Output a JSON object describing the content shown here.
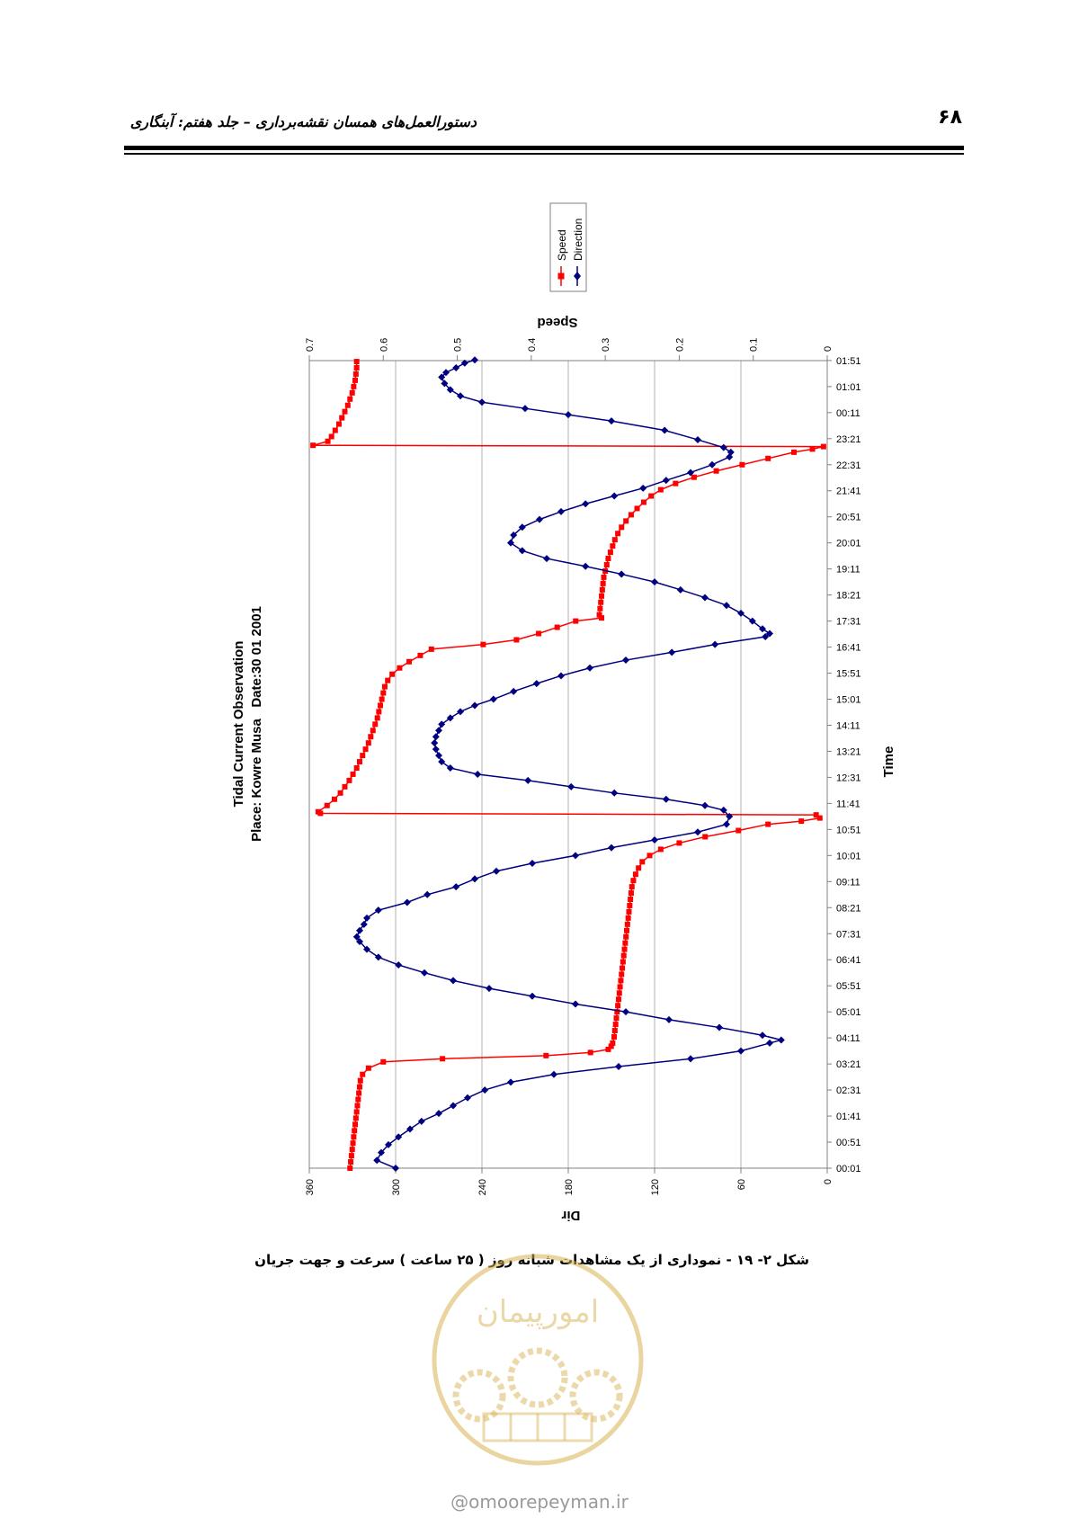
{
  "page": {
    "header_title": "دستورالعمل‌های همسان نقشه‌برداری – جلد هفتم: آبنگاری",
    "page_number": "۶۸",
    "caption": "شکل ۲- ۱۹ - نموداری از یک مشاهدات شبانه روز ( ۲۵ ساعت ) سرعت و جهت جریان",
    "watermark_text": "امورپیمان",
    "watermark_url": "@omoorepeyman.ir"
  },
  "colors": {
    "speed": "#ff0000",
    "direction": "#000080",
    "grid": "#b0b0b0",
    "watermark": "#d8b050"
  },
  "chart_data": {
    "type": "line",
    "orientation": "rotated-90",
    "title": "Tidal Current Observation",
    "subtitle": "Place: Kowre Musa   Date:30 01 2001",
    "xlabel": "Time",
    "ylabel_left": "Dir",
    "ylabel_right": "Speed",
    "x_tick_labels": [
      "00:01",
      "00:51",
      "01:41",
      "02:31",
      "03:21",
      "04:11",
      "05:01",
      "05:51",
      "06:41",
      "07:31",
      "08:21",
      "09:11",
      "10:01",
      "10:51",
      "11:41",
      "12:31",
      "13:21",
      "14:11",
      "15:01",
      "15:51",
      "16:41",
      "17:31",
      "18:21",
      "19:11",
      "20:01",
      "20:51",
      "21:41",
      "22:31",
      "23:21",
      "00:11",
      "01:01",
      "01:51"
    ],
    "x_range_hours": [
      0,
      25.83
    ],
    "dir_axis": {
      "range": [
        0,
        360
      ],
      "ticks": [
        0,
        60,
        120,
        180,
        240,
        300,
        360
      ]
    },
    "speed_axis": {
      "range": [
        0,
        0.7
      ],
      "ticks": [
        "0",
        "0.1",
        "0.2",
        "0.3",
        "0.4",
        "0.5",
        "0.6",
        "0.7"
      ]
    },
    "grid": true,
    "legend": {
      "position": "top",
      "entries": [
        "Speed",
        "Direction"
      ]
    },
    "series": [
      {
        "name": "Speed",
        "axis": "speed",
        "marker": "square",
        "points": [
          [
            0.0,
            0.645
          ],
          [
            0.2,
            0.644
          ],
          [
            0.4,
            0.643
          ],
          [
            0.6,
            0.642
          ],
          [
            0.8,
            0.641
          ],
          [
            1.0,
            0.64
          ],
          [
            1.2,
            0.639
          ],
          [
            1.4,
            0.638
          ],
          [
            1.6,
            0.637
          ],
          [
            1.8,
            0.636
          ],
          [
            2.0,
            0.635
          ],
          [
            2.2,
            0.634
          ],
          [
            2.4,
            0.633
          ],
          [
            2.6,
            0.632
          ],
          [
            2.8,
            0.631
          ],
          [
            3.0,
            0.628
          ],
          [
            3.2,
            0.62
          ],
          [
            3.4,
            0.6
          ],
          [
            3.5,
            0.52
          ],
          [
            3.6,
            0.38
          ],
          [
            3.7,
            0.32
          ],
          [
            3.8,
            0.296
          ],
          [
            3.9,
            0.292
          ],
          [
            4.0,
            0.29
          ],
          [
            4.2,
            0.288
          ],
          [
            4.4,
            0.287
          ],
          [
            4.6,
            0.286
          ],
          [
            4.8,
            0.285
          ],
          [
            5.0,
            0.284
          ],
          [
            5.2,
            0.283
          ],
          [
            5.4,
            0.282
          ],
          [
            5.6,
            0.281
          ],
          [
            5.8,
            0.28
          ],
          [
            6.0,
            0.279
          ],
          [
            6.2,
            0.278
          ],
          [
            6.4,
            0.277
          ],
          [
            6.6,
            0.276
          ],
          [
            6.8,
            0.275
          ],
          [
            7.0,
            0.274
          ],
          [
            7.2,
            0.273
          ],
          [
            7.4,
            0.272
          ],
          [
            7.6,
            0.271
          ],
          [
            7.8,
            0.27
          ],
          [
            8.0,
            0.269
          ],
          [
            8.2,
            0.268
          ],
          [
            8.4,
            0.267
          ],
          [
            8.6,
            0.266
          ],
          [
            8.8,
            0.265
          ],
          [
            9.0,
            0.264
          ],
          [
            9.2,
            0.262
          ],
          [
            9.4,
            0.259
          ],
          [
            9.6,
            0.255
          ],
          [
            9.8,
            0.25
          ],
          [
            10.0,
            0.24
          ],
          [
            10.2,
            0.225
          ],
          [
            10.4,
            0.2
          ],
          [
            10.6,
            0.165
          ],
          [
            10.8,
            0.12
          ],
          [
            11.0,
            0.08
          ],
          [
            11.1,
            0.035
          ],
          [
            11.2,
            0.01
          ],
          [
            11.3,
            0.015
          ],
          [
            11.35,
            0.685
          ],
          [
            11.4,
            0.688
          ],
          [
            11.6,
            0.676
          ],
          [
            11.8,
            0.666
          ],
          [
            12.0,
            0.658
          ],
          [
            12.2,
            0.652
          ],
          [
            12.4,
            0.646
          ],
          [
            12.6,
            0.641
          ],
          [
            12.8,
            0.636
          ],
          [
            13.0,
            0.632
          ],
          [
            13.2,
            0.628
          ],
          [
            13.4,
            0.624
          ],
          [
            13.6,
            0.62
          ],
          [
            13.8,
            0.617
          ],
          [
            14.0,
            0.614
          ],
          [
            14.2,
            0.611
          ],
          [
            14.4,
            0.608
          ],
          [
            14.6,
            0.606
          ],
          [
            14.8,
            0.604
          ],
          [
            15.0,
            0.602
          ],
          [
            15.2,
            0.6
          ],
          [
            15.4,
            0.598
          ],
          [
            15.6,
            0.594
          ],
          [
            15.8,
            0.588
          ],
          [
            16.0,
            0.578
          ],
          [
            16.2,
            0.565
          ],
          [
            16.4,
            0.55
          ],
          [
            16.6,
            0.535
          ],
          [
            16.75,
            0.465
          ],
          [
            16.9,
            0.42
          ],
          [
            17.1,
            0.39
          ],
          [
            17.3,
            0.365
          ],
          [
            17.5,
            0.34
          ],
          [
            17.6,
            0.305
          ],
          [
            17.7,
            0.308
          ],
          [
            17.9,
            0.307
          ],
          [
            18.1,
            0.306
          ],
          [
            18.3,
            0.305
          ],
          [
            18.5,
            0.304
          ],
          [
            18.7,
            0.303
          ],
          [
            18.9,
            0.302
          ],
          [
            19.1,
            0.3
          ],
          [
            19.3,
            0.298
          ],
          [
            19.5,
            0.296
          ],
          [
            19.7,
            0.293
          ],
          [
            19.9,
            0.29
          ],
          [
            20.1,
            0.287
          ],
          [
            20.3,
            0.283
          ],
          [
            20.5,
            0.278
          ],
          [
            20.7,
            0.272
          ],
          [
            20.9,
            0.265
          ],
          [
            21.1,
            0.257
          ],
          [
            21.3,
            0.248
          ],
          [
            21.5,
            0.238
          ],
          [
            21.7,
            0.225
          ],
          [
            21.9,
            0.205
          ],
          [
            22.1,
            0.18
          ],
          [
            22.3,
            0.15
          ],
          [
            22.5,
            0.115
          ],
          [
            22.7,
            0.08
          ],
          [
            22.9,
            0.045
          ],
          [
            23.0,
            0.02
          ],
          [
            23.08,
            0.005
          ],
          [
            23.12,
            0.695
          ],
          [
            23.25,
            0.675
          ],
          [
            23.4,
            0.67
          ],
          [
            23.6,
            0.665
          ],
          [
            23.8,
            0.66
          ],
          [
            24.0,
            0.656
          ],
          [
            24.2,
            0.652
          ],
          [
            24.4,
            0.648
          ],
          [
            24.6,
            0.645
          ],
          [
            24.8,
            0.642
          ],
          [
            25.0,
            0.64
          ],
          [
            25.2,
            0.638
          ],
          [
            25.4,
            0.637
          ],
          [
            25.6,
            0.636
          ],
          [
            25.8,
            0.636
          ]
        ]
      },
      {
        "name": "Direction",
        "axis": "dir",
        "marker": "diamond",
        "points": [
          [
            0.0,
            300
          ],
          [
            0.25,
            313
          ],
          [
            0.5,
            310
          ],
          [
            0.75,
            305
          ],
          [
            1.0,
            298
          ],
          [
            1.25,
            290
          ],
          [
            1.5,
            282
          ],
          [
            1.75,
            270
          ],
          [
            2.0,
            260
          ],
          [
            2.25,
            250
          ],
          [
            2.5,
            238
          ],
          [
            2.75,
            220
          ],
          [
            3.0,
            190
          ],
          [
            3.25,
            145
          ],
          [
            3.5,
            95
          ],
          [
            3.75,
            60
          ],
          [
            4.0,
            40
          ],
          [
            4.1,
            32
          ],
          [
            4.25,
            45
          ],
          [
            4.5,
            75
          ],
          [
            4.75,
            110
          ],
          [
            5.0,
            140
          ],
          [
            5.25,
            175
          ],
          [
            5.5,
            205
          ],
          [
            5.75,
            235
          ],
          [
            6.0,
            260
          ],
          [
            6.25,
            280
          ],
          [
            6.5,
            298
          ],
          [
            6.75,
            312
          ],
          [
            7.0,
            320
          ],
          [
            7.25,
            325
          ],
          [
            7.4,
            327
          ],
          [
            7.6,
            325
          ],
          [
            7.8,
            322
          ],
          [
            8.0,
            320
          ],
          [
            8.25,
            312
          ],
          [
            8.5,
            292
          ],
          [
            8.75,
            278
          ],
          [
            9.0,
            258
          ],
          [
            9.25,
            245
          ],
          [
            9.5,
            230
          ],
          [
            9.75,
            205
          ],
          [
            10.0,
            175
          ],
          [
            10.25,
            150
          ],
          [
            10.5,
            120
          ],
          [
            10.75,
            90
          ],
          [
            11.0,
            70
          ],
          [
            11.25,
            68
          ],
          [
            11.45,
            72
          ],
          [
            11.6,
            85
          ],
          [
            11.8,
            112
          ],
          [
            12.0,
            148
          ],
          [
            12.2,
            178
          ],
          [
            12.4,
            208
          ],
          [
            12.6,
            243
          ],
          [
            12.8,
            262
          ],
          [
            13.0,
            268
          ],
          [
            13.2,
            270
          ],
          [
            13.4,
            272
          ],
          [
            13.6,
            273
          ],
          [
            13.8,
            272
          ],
          [
            14.0,
            270
          ],
          [
            14.2,
            268
          ],
          [
            14.4,
            262
          ],
          [
            14.6,
            255
          ],
          [
            14.8,
            245
          ],
          [
            15.0,
            232
          ],
          [
            15.25,
            218
          ],
          [
            15.5,
            202
          ],
          [
            15.75,
            185
          ],
          [
            16.0,
            165
          ],
          [
            16.25,
            140
          ],
          [
            16.5,
            108
          ],
          [
            16.75,
            78
          ],
          [
            17.0,
            43
          ],
          [
            17.1,
            40
          ],
          [
            17.25,
            45
          ],
          [
            17.5,
            52
          ],
          [
            17.75,
            60
          ],
          [
            18.0,
            70
          ],
          [
            18.25,
            85
          ],
          [
            18.5,
            102
          ],
          [
            18.75,
            120
          ],
          [
            19.0,
            143
          ],
          [
            19.25,
            168
          ],
          [
            19.5,
            195
          ],
          [
            19.75,
            212
          ],
          [
            20.0,
            220
          ],
          [
            20.25,
            218
          ],
          [
            20.5,
            212
          ],
          [
            20.75,
            200
          ],
          [
            21.0,
            185
          ],
          [
            21.25,
            168
          ],
          [
            21.5,
            148
          ],
          [
            21.75,
            128
          ],
          [
            22.0,
            112
          ],
          [
            22.25,
            95
          ],
          [
            22.5,
            80
          ],
          [
            22.75,
            68
          ],
          [
            22.9,
            67
          ],
          [
            23.05,
            72
          ],
          [
            23.3,
            90
          ],
          [
            23.6,
            113
          ],
          [
            23.9,
            150
          ],
          [
            24.1,
            180
          ],
          [
            24.3,
            210
          ],
          [
            24.5,
            240
          ],
          [
            24.7,
            255
          ],
          [
            24.9,
            262
          ],
          [
            25.1,
            266
          ],
          [
            25.3,
            268
          ],
          [
            25.45,
            265
          ],
          [
            25.6,
            258
          ],
          [
            25.75,
            252
          ],
          [
            25.85,
            245
          ]
        ]
      }
    ]
  }
}
